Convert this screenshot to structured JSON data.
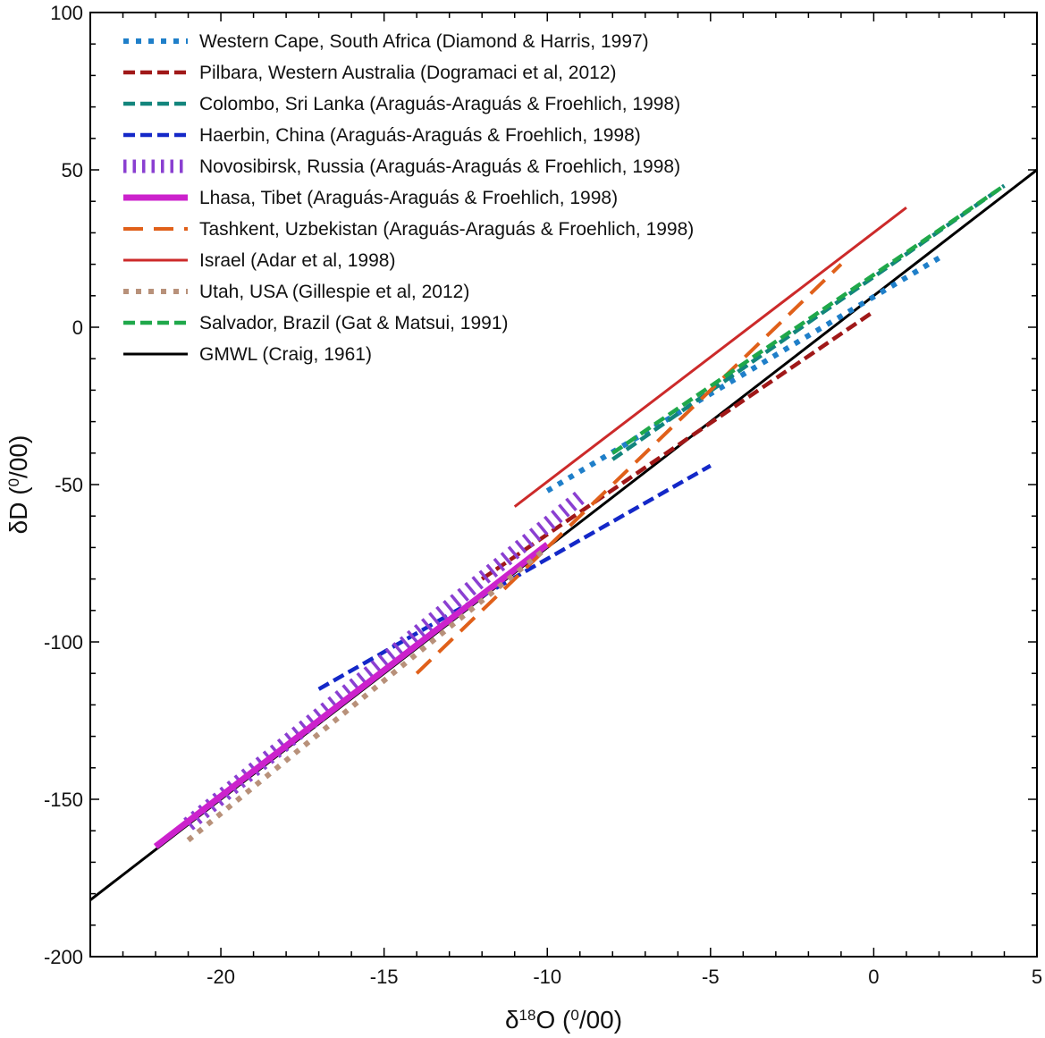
{
  "chart_data": {
    "type": "line",
    "xlabel": "δ18O (0/00)",
    "xlabel_parts": {
      "delta": "δ",
      "sup": "18",
      "element": "O",
      "unit_open": " (",
      "unit_sup": "0",
      "unit_rest": "/00)"
    },
    "ylabel": "δD (0/00)",
    "ylabel_parts": {
      "main": "δD (",
      "unit_sup": "0",
      "unit_rest": "/00)"
    },
    "xlim": [
      -24,
      5
    ],
    "ylim": [
      -200,
      100
    ],
    "xticks": [
      -20,
      -15,
      -10,
      -5,
      0,
      5
    ],
    "yticks": [
      -200,
      -150,
      -100,
      -50,
      0,
      50,
      100
    ],
    "legend_position": "top-left",
    "grid": false,
    "series": [
      {
        "name": "Western Cape, South Africa (Diamond & Harris, 1997)",
        "color": "#1f7fc9",
        "style": "dotted",
        "x": [
          -10,
          2
        ],
        "y": [
          -52,
          22
        ]
      },
      {
        "name": "Pilbara, Western Australia (Dogramaci et al, 2012)",
        "color": "#a01818",
        "style": "dashed",
        "x": [
          -12,
          0
        ],
        "y": [
          -80,
          5
        ]
      },
      {
        "name": "Colombo, Sri Lanka (Araguás-Araguás & Froehlich, 1998)",
        "color": "#12857c",
        "style": "dashed",
        "x": [
          -8,
          4
        ],
        "y": [
          -42,
          45
        ]
      },
      {
        "name": "Haerbin, China (Araguás-Araguás & Froehlich, 1998)",
        "color": "#1428c8",
        "style": "dashed",
        "x": [
          -17,
          -5
        ],
        "y": [
          -115,
          -44
        ]
      },
      {
        "name": "Novosibirsk, Russia (Araguás-Araguás & Froehlich, 1998)",
        "color": "#8a3fd1",
        "style": "hatched",
        "x": [
          -21,
          -9
        ],
        "y": [
          -158,
          -54
        ]
      },
      {
        "name": "Lhasa, Tibet (Araguás-Araguás & Froehlich, 1998)",
        "color": "#cc22cc",
        "style": "solid-thick",
        "x": [
          -22,
          -10
        ],
        "y": [
          -165,
          -69
        ]
      },
      {
        "name": "Tashkent, Uzbekistan (Araguás-Araguás & Froehlich, 1998)",
        "color": "#e0601a",
        "style": "long-dashed",
        "x": [
          -14,
          -1
        ],
        "y": [
          -110,
          20
        ]
      },
      {
        "name": "Israel (Adar et al, 1998)",
        "color": "#cc2a2a",
        "style": "solid",
        "x": [
          -11,
          1
        ],
        "y": [
          -57,
          38
        ]
      },
      {
        "name": "Utah, USA (Gillespie et al, 2012)",
        "color": "#b8917a",
        "style": "dotted",
        "x": [
          -21,
          -10
        ],
        "y": [
          -163,
          -70
        ]
      },
      {
        "name": "Salvador, Brazil (Gat & Matsui, 1991)",
        "color": "#1fa84a",
        "style": "dashed",
        "x": [
          -8,
          4
        ],
        "y": [
          -40,
          45
        ]
      },
      {
        "name": "GMWL (Craig, 1961)",
        "color": "#000000",
        "style": "solid",
        "x": [
          -24,
          5
        ],
        "y": [
          -182,
          50
        ]
      }
    ]
  }
}
